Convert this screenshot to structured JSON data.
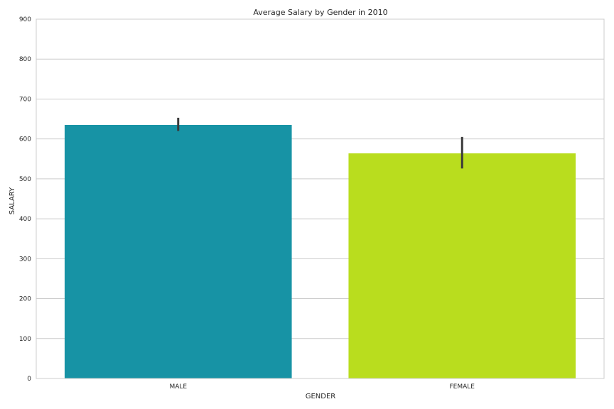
{
  "chart_data": {
    "type": "bar",
    "title": "Average Salary by Gender in 2010",
    "xlabel": "GENDER",
    "ylabel": "SALARY",
    "categories": [
      "MALE",
      "FEMALE"
    ],
    "values": [
      635,
      564
    ],
    "error_bars": [
      {
        "low": 620,
        "high": 653
      },
      {
        "low": 526,
        "high": 605
      }
    ],
    "colors": [
      "#1793a5",
      "#b9dd1e"
    ],
    "error_color": "#3a3a3a",
    "ylim": [
      0,
      900
    ],
    "yticks": [
      "0",
      "100",
      "200",
      "300",
      "400",
      "500",
      "600",
      "700",
      "800",
      "900"
    ],
    "grid": true,
    "grid_color": "#cccccc",
    "legend": "none"
  }
}
